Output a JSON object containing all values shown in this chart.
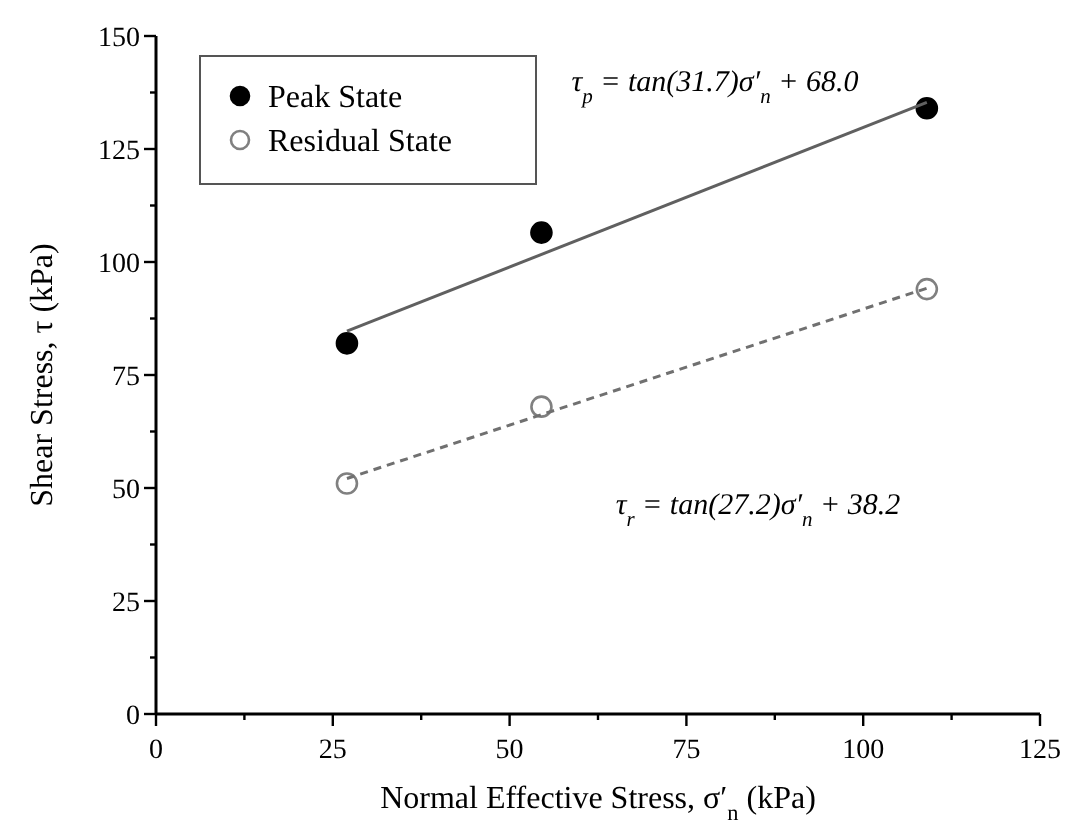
{
  "chart_data": {
    "type": "scatter",
    "xlabel": "Normal Effective Stress, σ′$_{n}$ (kPa)",
    "ylabel": "Shear Stress, τ (kPa)",
    "xlim": [
      0,
      125
    ],
    "ylim": [
      0,
      150
    ],
    "xticks": [
      0,
      {
        "value": 12.5,
        "label": null
      },
      25,
      {
        "value": 37.5,
        "label": null
      },
      50,
      {
        "value": 62.5,
        "label": null
      },
      75,
      {
        "value": 87.5,
        "label": null
      },
      100,
      {
        "value": 112.5,
        "label": null
      },
      125
    ],
    "yticks": [
      0,
      {
        "value": 12.5,
        "label": null
      },
      25,
      {
        "value": 37.5,
        "label": null
      },
      50,
      {
        "value": 62.5,
        "label": null
      },
      75,
      {
        "value": 87.5,
        "label": null
      },
      100,
      {
        "value": 112.5,
        "label": null
      },
      125,
      {
        "value": 137.5,
        "label": null
      },
      150
    ],
    "grid": false,
    "legend": "top left",
    "marker": "circle",
    "series": [
      {
        "name": "Peak State",
        "color": "#000000",
        "x": [
          27,
          54.5,
          109
        ],
        "values": [
          82,
          106.5,
          134
        ]
      },
      {
        "name": "Residual State",
        "color": "#808080",
        "x": [
          27,
          54.5,
          109
        ],
        "values": [
          51,
          68,
          94
        ]
      },
      {
        "type": "line",
        "color": "#606060",
        "line_style": "solid",
        "marker": "none",
        "x": [
          27,
          109
        ],
        "values": [
          84.7,
          135.3
        ]
      },
      {
        "type": "line",
        "color": "#707070",
        "line_style": "dashed",
        "marker": "none",
        "x": [
          27,
          109
        ],
        "values": [
          52.1,
          94.2
        ]
      }
    ],
    "annotations": [
      "τ$_{p}$ = tan(31.7)σ′$_{n}$ + 68.0",
      "τ$_{r}$ = tan(27.2)σ′$_{n}$ + 38.2"
    ]
  }
}
